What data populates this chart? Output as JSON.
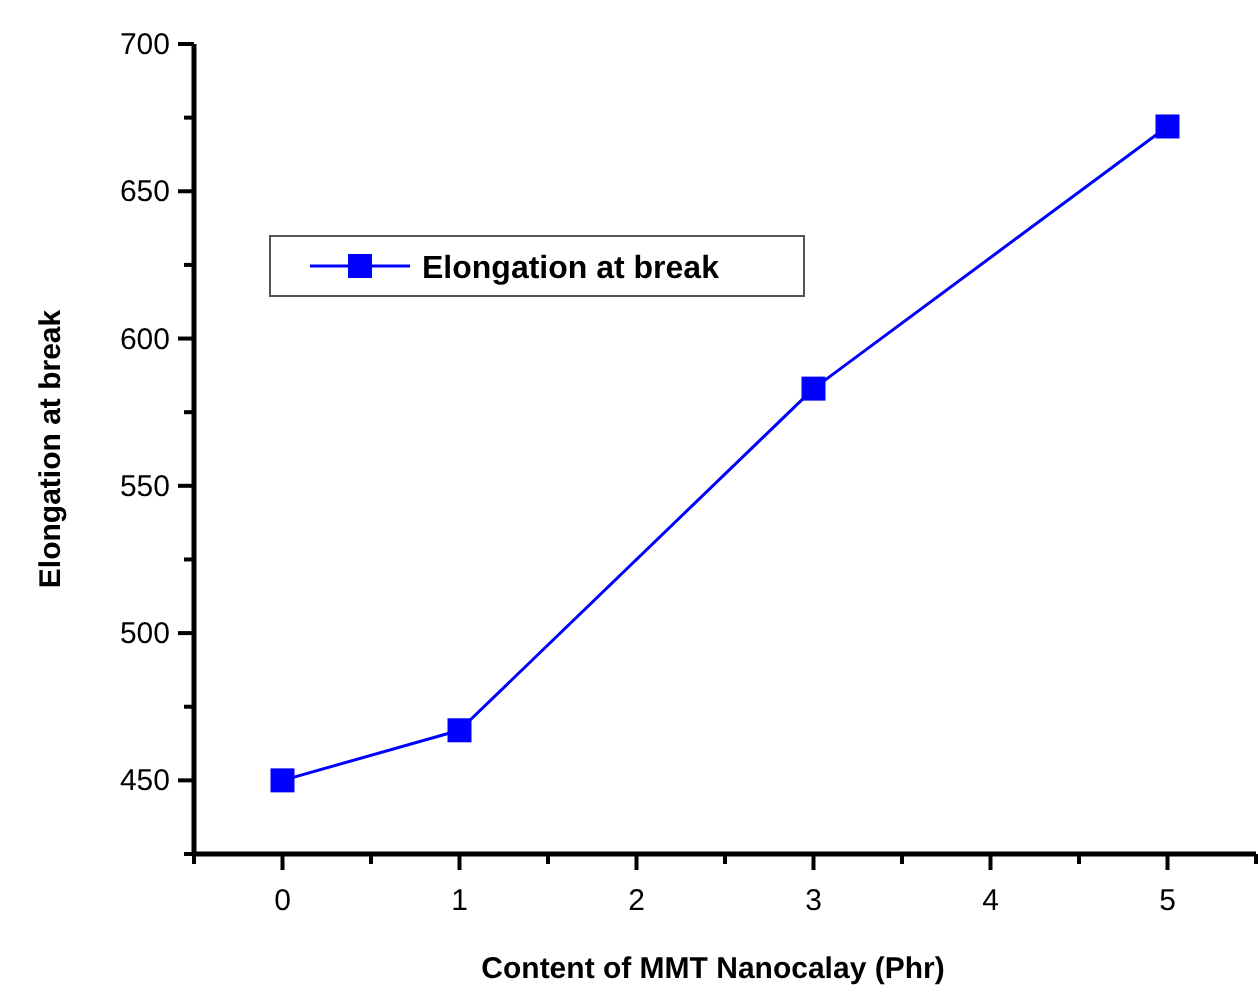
{
  "chart_data": {
    "type": "line",
    "xlabel": "Content of MMT Nanocalay (Phr)",
    "ylabel": "Elongation at break",
    "x": [
      0,
      1,
      3,
      5
    ],
    "series": [
      {
        "name": "Elongation at break",
        "color": "#0000ff",
        "values": [
          450,
          467,
          583,
          672
        ]
      }
    ],
    "xlim": [
      -0.5,
      5.5
    ],
    "ylim": [
      425,
      700
    ],
    "xticks": [
      {
        "value": -0.5,
        "label": null
      },
      0,
      {
        "value": 0.5,
        "label": null
      },
      1,
      {
        "value": 1.5,
        "label": null
      },
      2,
      {
        "value": 2.5,
        "label": null
      },
      3,
      {
        "value": 3.5,
        "label": null
      },
      4,
      {
        "value": 4.5,
        "label": null
      },
      5,
      {
        "value": 5.5,
        "label": null
      }
    ],
    "yticks": [
      {
        "value": 425,
        "label": null
      },
      450,
      {
        "value": 475,
        "label": null
      },
      500,
      {
        "value": 525,
        "label": null
      },
      550,
      {
        "value": 575,
        "label": null
      },
      600,
      {
        "value": 625,
        "label": null
      },
      650,
      {
        "value": 675,
        "label": null
      },
      700
    ],
    "grid": false,
    "legend": "top left",
    "marker": "square",
    "line_style": "solid"
  }
}
